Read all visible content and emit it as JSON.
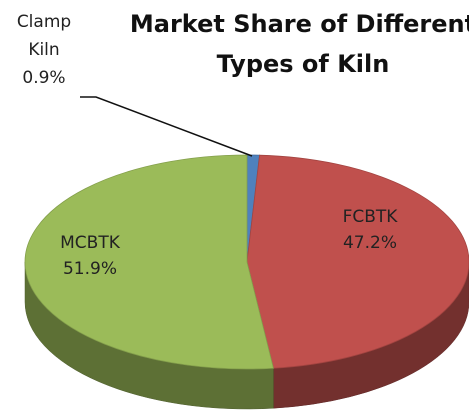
{
  "chart_data": {
    "type": "pie",
    "title": "Market Share of Different Types of Kiln",
    "categories": [
      "Clamp Kiln",
      "FCBTK",
      "MCBTK"
    ],
    "values": [
      0.9,
      47.2,
      51.9
    ],
    "value_labels": [
      "0.9%",
      "47.2%",
      "51.9%"
    ],
    "colors": [
      "#4f81bd",
      "#c0504d",
      "#9bbb59"
    ]
  }
}
